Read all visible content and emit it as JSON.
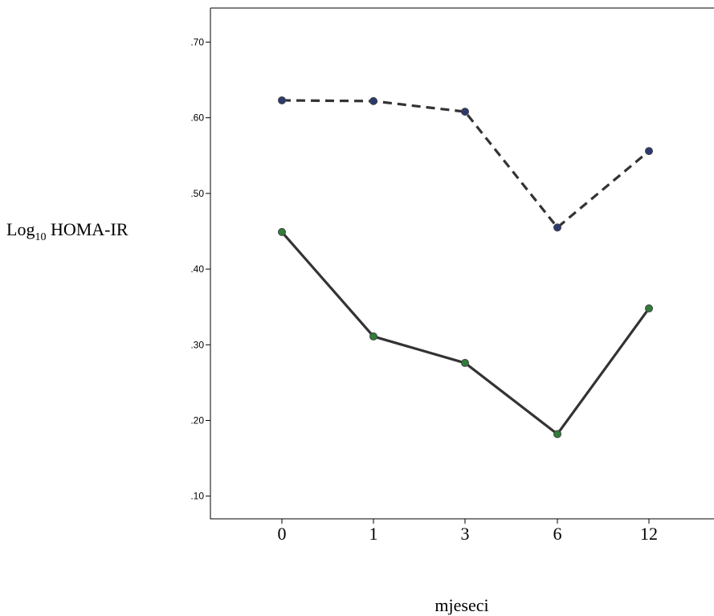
{
  "chart_data": {
    "type": "line",
    "title": "",
    "ylabel": {
      "main": "Log",
      "subscript": "10",
      "suffix": " HOMA-IR"
    },
    "xlabel": "mjeseci",
    "categories": [
      "0",
      "1",
      "3",
      "6",
      "12"
    ],
    "y_ticks": [
      ".10",
      ".20",
      ".30",
      ".40",
      ".50",
      ".60",
      ".70"
    ],
    "y_tick_values": [
      0.1,
      0.2,
      0.3,
      0.4,
      0.5,
      0.6,
      0.7
    ],
    "ylim": [
      0.07,
      0.745
    ],
    "grid": false,
    "series": [
      {
        "style": "dashed",
        "marker_color": "#2b3a70",
        "values": [
          0.623,
          0.622,
          0.608,
          0.455,
          0.556
        ]
      },
      {
        "style": "solid",
        "marker_color": "#2e7d3a",
        "values": [
          0.449,
          0.311,
          0.276,
          0.182,
          0.348
        ]
      }
    ]
  }
}
